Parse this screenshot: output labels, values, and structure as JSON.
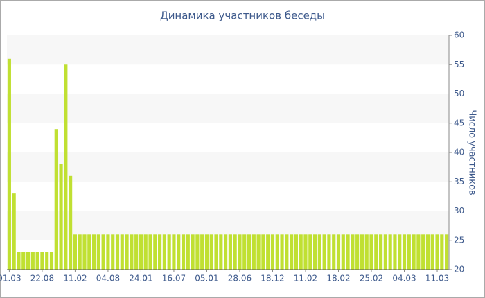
{
  "chart_data": {
    "type": "bar",
    "title": "Динамика участников беседы",
    "y_label": "Число участников",
    "categories": [
      "01.03",
      null,
      null,
      null,
      null,
      null,
      null,
      "22.08",
      null,
      null,
      null,
      null,
      null,
      null,
      "11.02",
      null,
      null,
      null,
      null,
      null,
      null,
      "04.08",
      null,
      null,
      null,
      null,
      null,
      null,
      "24.01",
      null,
      null,
      null,
      null,
      null,
      null,
      "16.07",
      null,
      null,
      null,
      null,
      null,
      null,
      "05.01",
      null,
      null,
      null,
      null,
      null,
      null,
      "28.06",
      null,
      null,
      null,
      null,
      null,
      null,
      "18.12",
      null,
      null,
      null,
      null,
      null,
      null,
      "11.02",
      null,
      null,
      null,
      null,
      null,
      null,
      "18.02",
      null,
      null,
      null,
      null,
      null,
      null,
      "25.02",
      null,
      null,
      null,
      null,
      null,
      null,
      "04.03",
      null,
      null,
      null,
      null,
      null,
      null,
      "11.03",
      null,
      null
    ],
    "values": [
      56,
      33,
      23,
      23,
      23,
      23,
      23,
      23,
      23,
      23,
      44,
      38,
      55,
      36,
      26,
      26,
      26,
      26,
      26,
      26,
      26,
      26,
      26,
      26,
      26,
      26,
      26,
      26,
      26,
      26,
      26,
      26,
      26,
      26,
      26,
      26,
      26,
      26,
      26,
      26,
      26,
      26,
      26,
      26,
      26,
      26,
      26,
      26,
      26,
      26,
      26,
      26,
      26,
      26,
      26,
      26,
      26,
      26,
      26,
      26,
      26,
      26,
      26,
      26,
      26,
      26,
      26,
      26,
      26,
      26,
      26,
      26,
      26,
      26,
      26,
      26,
      26,
      26,
      26,
      26,
      26,
      26,
      26,
      26,
      26,
      26,
      26,
      26,
      26,
      26,
      26,
      26,
      26,
      26
    ],
    "color": "#c0e032",
    "ylim": [
      20,
      60
    ],
    "yticks": [
      20,
      25,
      30,
      35,
      40,
      45,
      50,
      55,
      60
    ],
    "grid": true,
    "y_axis_position": "right"
  }
}
